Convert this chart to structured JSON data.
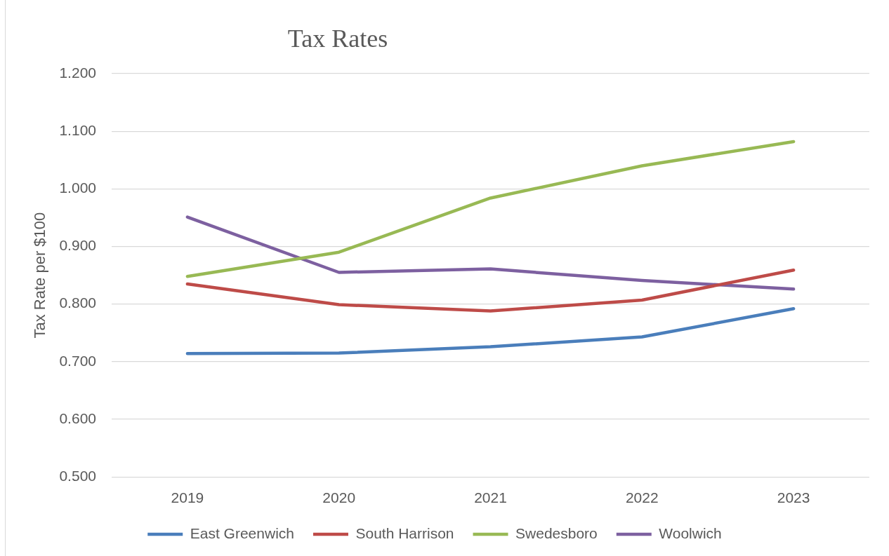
{
  "chart_data": {
    "type": "line",
    "title": "Tax Rates",
    "ylabel": "Tax Rate per $100",
    "categories": [
      "2019",
      "2020",
      "2021",
      "2022",
      "2023"
    ],
    "series": [
      {
        "name": "East Greenwich",
        "color": "#4a7ebb",
        "values": [
          0.714,
          0.715,
          0.726,
          0.743,
          0.792
        ]
      },
      {
        "name": "South Harrison",
        "color": "#be4b48",
        "values": [
          0.835,
          0.799,
          0.788,
          0.807,
          0.859
        ]
      },
      {
        "name": "Swedesboro",
        "color": "#98b954",
        "values": [
          0.848,
          0.89,
          0.984,
          1.04,
          1.082
        ]
      },
      {
        "name": "Woolwich",
        "color": "#7d60a0",
        "values": [
          0.951,
          0.855,
          0.861,
          0.841,
          0.826
        ]
      }
    ],
    "ylim": [
      0.5,
      1.2
    ],
    "yticks": [
      {
        "value": 0.5,
        "label": "0.500"
      },
      {
        "value": 0.6,
        "label": "0.600"
      },
      {
        "value": 0.7,
        "label": "0.700"
      },
      {
        "value": 0.8,
        "label": "0.800"
      },
      {
        "value": 0.9,
        "label": "0.900"
      },
      {
        "value": 1.0,
        "label": "1.000"
      },
      {
        "value": 1.1,
        "label": "1.100"
      },
      {
        "value": 1.2,
        "label": "1.200"
      }
    ],
    "grid": "y",
    "legend": "bottom",
    "line_style": "solid"
  }
}
